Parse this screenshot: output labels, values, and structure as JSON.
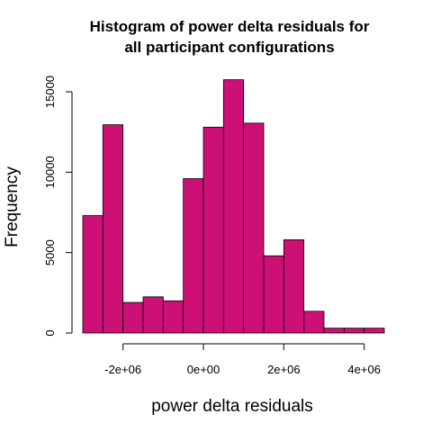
{
  "chart_data": {
    "type": "bar",
    "title_lines": [
      "Histogram of power delta residuals for",
      "all participant configurations"
    ],
    "xlabel": "power delta residuals",
    "ylabel": "Frequency",
    "bar_color": "#CD1076",
    "bin_width": 500000,
    "bins": [
      {
        "start": -3000000,
        "end": -2500000,
        "count": 7300
      },
      {
        "start": -2500000,
        "end": -2000000,
        "count": 12950
      },
      {
        "start": -2000000,
        "end": -1500000,
        "count": 1900
      },
      {
        "start": -1500000,
        "end": -1000000,
        "count": 2250
      },
      {
        "start": -1000000,
        "end": -500000,
        "count": 2000
      },
      {
        "start": -500000,
        "end": 0,
        "count": 9600
      },
      {
        "start": 0,
        "end": 500000,
        "count": 12800
      },
      {
        "start": 500000,
        "end": 1000000,
        "count": 15750
      },
      {
        "start": 1000000,
        "end": 1500000,
        "count": 13050
      },
      {
        "start": 1500000,
        "end": 2000000,
        "count": 4800
      },
      {
        "start": 2000000,
        "end": 2500000,
        "count": 5800
      },
      {
        "start": 2500000,
        "end": 3000000,
        "count": 1350
      },
      {
        "start": 3000000,
        "end": 3500000,
        "count": 300
      },
      {
        "start": 3500000,
        "end": 4000000,
        "count": 300
      },
      {
        "start": 4000000,
        "end": 4500000,
        "count": 300
      }
    ],
    "xlim": [
      -3000000,
      4500000
    ],
    "ylim": [
      0,
      16000
    ],
    "x_ticks": [
      {
        "value": -2000000,
        "label": "-2e+06"
      },
      {
        "value": 0,
        "label": "0e+00"
      },
      {
        "value": 2000000,
        "label": "2e+06"
      },
      {
        "value": 4000000,
        "label": "4e+06"
      }
    ],
    "y_ticks": [
      {
        "value": 0,
        "label": "0"
      },
      {
        "value": 5000,
        "label": "5000"
      },
      {
        "value": 10000,
        "label": "10000"
      },
      {
        "value": 15000,
        "label": "15000"
      }
    ],
    "grid": false,
    "legend": "none"
  }
}
